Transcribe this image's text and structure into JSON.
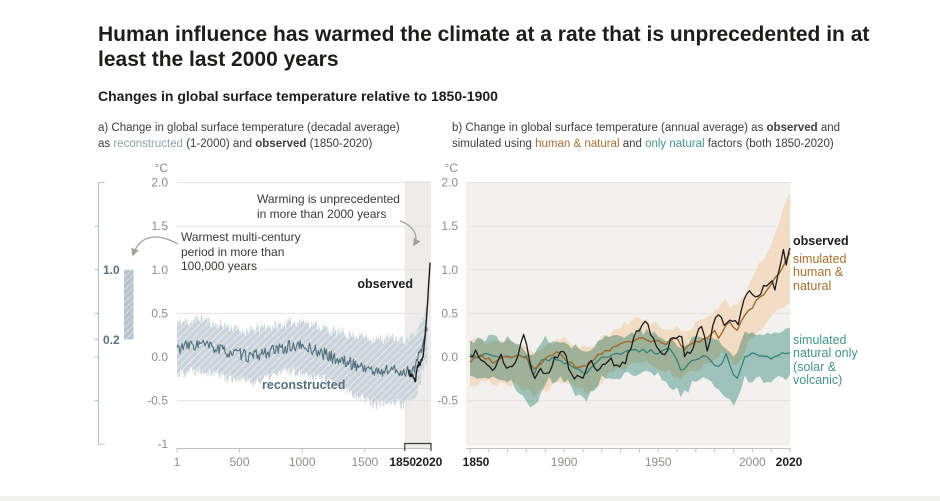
{
  "title": "Human influence has warmed the climate at a rate that is unprecedented in at least the last 2000 years",
  "subtitle": "Changes in global surface temperature relative to 1850-1900",
  "colors": {
    "text_dark": "#1d1d1b",
    "text_body": "#3e3e3c",
    "tick_gray": "#8d8d89",
    "grid": "#e4e3df",
    "axis": "#c2c1bd",
    "reconstructed_text": "#8aa2b2",
    "reconstructed_line": "#53717e",
    "reconstructed_label": "#54727f",
    "mini_label": "#5b7282",
    "mini_axis": "#b7bfc5",
    "highlight": "#edecea",
    "panel_bg": "#f2f1ee",
    "observed": "#1c1c1c",
    "hn_text": "#a86e2f",
    "hn_line": "#a2682c",
    "hn_band": "#f2dcc3",
    "nat_text": "#43948b",
    "nat_line": "#2e7e75",
    "nat_band": "#a6cfc8",
    "arrow": "#a3a29e",
    "bracket": "#3c3c3a"
  },
  "panel_a": {
    "caption": {
      "line1": "a) Change in global surface temperature (decadal average)",
      "l2_pre": "as ",
      "l2_reconstructed": "reconstructed",
      "l2_mid": " (1-2000) and ",
      "l2_observed": "observed",
      "l2_post": " (1850-2020)"
    },
    "labels": {
      "observed": "observed",
      "reconstructed": "reconstructed"
    },
    "annotations": {
      "warming": [
        "Warming is unprecedented",
        "in more than 2000 years"
      ],
      "warmest": [
        "Warmest multi-century",
        "period in more than",
        "100,000 years"
      ]
    },
    "side_scale": {
      "top_label": "1.0",
      "bottom_label": "0.2"
    }
  },
  "panel_b": {
    "caption": {
      "l1_pre": "b) Change in global surface temperature (annual average) as ",
      "l1_observed": "observed",
      "l1_post": " and",
      "l2_pre": "simulated using ",
      "l2_hn": "human & natural",
      "l2_mid": " and ",
      "l2_nat": "only natural",
      "l2_post": " factors (both 1850-2020)"
    },
    "legend": {
      "observed": "observed",
      "human_natural": [
        "simulated",
        "human &",
        "natural"
      ],
      "natural_only": [
        "simulated",
        "natural only",
        "(solar &",
        "volcanic)"
      ]
    }
  },
  "chart_data": [
    {
      "id": "a",
      "type": "line",
      "title": "Change in global surface temperature (decadal average) as reconstructed (1-2000) and observed (1850-2020)",
      "ylabel": "°C",
      "xlim": [
        1,
        2020
      ],
      "ylim": [
        -1,
        2
      ],
      "yticks": [
        2.0,
        1.5,
        1.0,
        0.5,
        0.0,
        -0.5,
        -1
      ],
      "ytick_labels": [
        "2.0",
        "1.5",
        "1.0",
        "0.5",
        "0.0",
        "-0.5",
        "-1"
      ],
      "xticks": [
        {
          "v": 1,
          "label": "1",
          "bold": false,
          "dx": 0
        },
        {
          "v": 500,
          "label": "500",
          "bold": false,
          "dx": 0
        },
        {
          "v": 1000,
          "label": "1000",
          "bold": false,
          "dx": 0
        },
        {
          "v": 1500,
          "label": "1500",
          "bold": false,
          "dx": 0
        },
        {
          "v": 1850,
          "label": "1850",
          "bold": true,
          "dx": -6
        },
        {
          "v": 2020,
          "label": "2020",
          "bold": true,
          "dx": -1
        }
      ],
      "highlight_span": [
        1850,
        2020
      ],
      "side_bar": {
        "from": 0.2,
        "to": 1.0,
        "ticks": [
          1.5,
          1.0,
          0.5,
          0.2,
          0.0,
          -0.5
        ]
      },
      "series": [
        {
          "name": "reconstructed",
          "x": [
            1,
            100,
            200,
            300,
            400,
            500,
            600,
            700,
            800,
            900,
            1000,
            1100,
            1200,
            1300,
            1400,
            1500,
            1600,
            1700,
            1800,
            1900,
            2000
          ],
          "mid": [
            0.1,
            0.13,
            0.15,
            0.1,
            0.06,
            0.03,
            0.0,
            0.05,
            0.08,
            0.12,
            0.12,
            0.08,
            0.02,
            -0.04,
            -0.08,
            -0.12,
            -0.18,
            -0.14,
            -0.18,
            -0.12,
            0.3
          ],
          "half": [
            0.3,
            0.28,
            0.3,
            0.28,
            0.3,
            0.28,
            0.3,
            0.3,
            0.28,
            0.28,
            0.3,
            0.3,
            0.3,
            0.32,
            0.34,
            0.36,
            0.38,
            0.36,
            0.38,
            0.36,
            0.3
          ]
        },
        {
          "name": "observed",
          "x": [
            1850,
            1860,
            1870,
            1880,
            1890,
            1900,
            1910,
            1920,
            1930,
            1940,
            1950,
            1960,
            1970,
            1980,
            1990,
            2000,
            2010,
            2020
          ],
          "y": [
            -0.17,
            -0.2,
            -0.23,
            -0.2,
            -0.25,
            -0.27,
            -0.22,
            -0.12,
            -0.05,
            -0.1,
            -0.03,
            -0.03,
            0.08,
            0.22,
            0.4,
            0.62,
            0.85,
            1.08
          ]
        }
      ]
    },
    {
      "id": "b",
      "type": "line",
      "title": "Change in global surface temperature (annual average) as observed and simulated using human & natural and only natural factors (both 1850-2020)",
      "ylabel": "°C",
      "xlim": [
        1850,
        2020
      ],
      "ylim": [
        -1,
        2
      ],
      "yticks": [
        2.0,
        1.5,
        1.0,
        0.5,
        0.0,
        -0.5
      ],
      "ytick_labels": [
        "2.0",
        "1.5",
        "1.0",
        "0.5",
        "0.0",
        "-0.5"
      ],
      "xticks": [
        {
          "v": 1850,
          "label": "1850",
          "bold": true,
          "dx": 6
        },
        {
          "v": 1900,
          "label": "1900",
          "bold": false,
          "dx": 0
        },
        {
          "v": 1950,
          "label": "1950",
          "bold": false,
          "dx": 0
        },
        {
          "v": 2000,
          "label": "2000",
          "bold": false,
          "dx": 0
        },
        {
          "v": 2020,
          "label": "2020",
          "bold": true,
          "dx": -1
        }
      ],
      "minor_tick_step": 10,
      "series": [
        {
          "name": "simulated human & natural",
          "x": [
            1850,
            1856,
            1862,
            1868,
            1875,
            1880,
            1884,
            1890,
            1896,
            1902,
            1907,
            1912,
            1918,
            1924,
            1930,
            1936,
            1942,
            1948,
            1954,
            1960,
            1963,
            1968,
            1974,
            1980,
            1982,
            1988,
            1991,
            1995,
            2000,
            2005,
            2010,
            2015,
            2020
          ],
          "y": [
            -0.05,
            0.02,
            -0.05,
            0.0,
            0.02,
            0.0,
            -0.15,
            -0.02,
            0.05,
            -0.05,
            -0.12,
            -0.1,
            0.02,
            0.08,
            0.15,
            0.18,
            0.22,
            0.18,
            0.15,
            0.22,
            0.08,
            0.15,
            0.2,
            0.3,
            0.22,
            0.42,
            0.28,
            0.45,
            0.58,
            0.7,
            0.82,
            1.0,
            1.2
          ],
          "band_x": [
            1850,
            1870,
            1884,
            1900,
            1912,
            1925,
            1940,
            1950,
            1963,
            1975,
            1985,
            1991,
            2000,
            2010,
            2020
          ],
          "band_hi": [
            0.18,
            0.2,
            0.08,
            0.22,
            0.1,
            0.28,
            0.45,
            0.35,
            0.3,
            0.45,
            0.65,
            0.55,
            0.9,
            1.3,
            1.88
          ],
          "band_lo": [
            -0.3,
            -0.28,
            -0.45,
            -0.25,
            -0.4,
            -0.2,
            -0.05,
            -0.12,
            -0.25,
            -0.1,
            0.05,
            -0.1,
            0.25,
            0.45,
            0.62
          ]
        },
        {
          "name": "simulated natural only (solar & volcanic)",
          "x": [
            1850,
            1860,
            1870,
            1880,
            1883,
            1888,
            1895,
            1902,
            1907,
            1912,
            1920,
            1930,
            1940,
            1950,
            1957,
            1963,
            1968,
            1975,
            1982,
            1986,
            1991,
            1996,
            2000,
            2005,
            2010,
            2015,
            2020
          ],
          "y": [
            0.0,
            0.02,
            0.0,
            0.02,
            -0.22,
            -0.05,
            0.0,
            -0.08,
            -0.15,
            -0.18,
            0.0,
            0.05,
            0.08,
            0.05,
            0.08,
            -0.18,
            -0.02,
            0.0,
            -0.12,
            0.02,
            -0.28,
            0.02,
            0.05,
            0.02,
            0.0,
            0.05,
            0.05
          ],
          "band_x": [
            1850,
            1860,
            1870,
            1883,
            1890,
            1900,
            1907,
            1912,
            1920,
            1930,
            1940,
            1950,
            1963,
            1970,
            1980,
            1991,
            1996,
            2005,
            2010,
            2020
          ],
          "band_hi": [
            0.2,
            0.22,
            0.2,
            0.05,
            0.2,
            0.2,
            0.1,
            0.05,
            0.22,
            0.25,
            0.3,
            0.25,
            0.1,
            0.25,
            0.2,
            0.0,
            0.28,
            0.3,
            0.28,
            0.33
          ],
          "band_lo": [
            -0.25,
            -0.22,
            -0.25,
            -0.6,
            -0.28,
            -0.25,
            -0.45,
            -0.5,
            -0.25,
            -0.22,
            -0.18,
            -0.22,
            -0.45,
            -0.25,
            -0.3,
            -0.55,
            -0.25,
            -0.25,
            -0.28,
            -0.2
          ]
        },
        {
          "name": "observed",
          "x": [
            1850,
            1853,
            1858,
            1862,
            1866,
            1871,
            1875,
            1878,
            1881,
            1884,
            1888,
            1892,
            1896,
            1900,
            1903,
            1907,
            1910,
            1914,
            1917,
            1921,
            1925,
            1929,
            1933,
            1937,
            1941,
            1944,
            1947,
            1950,
            1954,
            1958,
            1962,
            1964,
            1968,
            1970,
            1973,
            1976,
            1980,
            1983,
            1986,
            1989,
            1992,
            1995,
            1998,
            2001,
            2004,
            2007,
            2010,
            2012,
            2014,
            2016,
            2018,
            2020
          ],
          "y": [
            -0.02,
            0.08,
            -0.1,
            -0.18,
            0.0,
            -0.12,
            -0.05,
            0.3,
            0.05,
            -0.22,
            -0.15,
            -0.22,
            0.02,
            0.08,
            -0.18,
            -0.25,
            -0.22,
            0.0,
            -0.22,
            -0.05,
            -0.02,
            -0.12,
            -0.05,
            0.22,
            0.35,
            0.45,
            0.2,
            0.05,
            0.05,
            0.25,
            0.25,
            0.0,
            0.05,
            0.25,
            0.35,
            0.05,
            0.45,
            0.5,
            0.35,
            0.45,
            0.35,
            0.6,
            0.8,
            0.7,
            0.75,
            0.85,
            0.9,
            0.8,
            0.95,
            1.25,
            1.1,
            1.25
          ]
        }
      ]
    }
  ]
}
